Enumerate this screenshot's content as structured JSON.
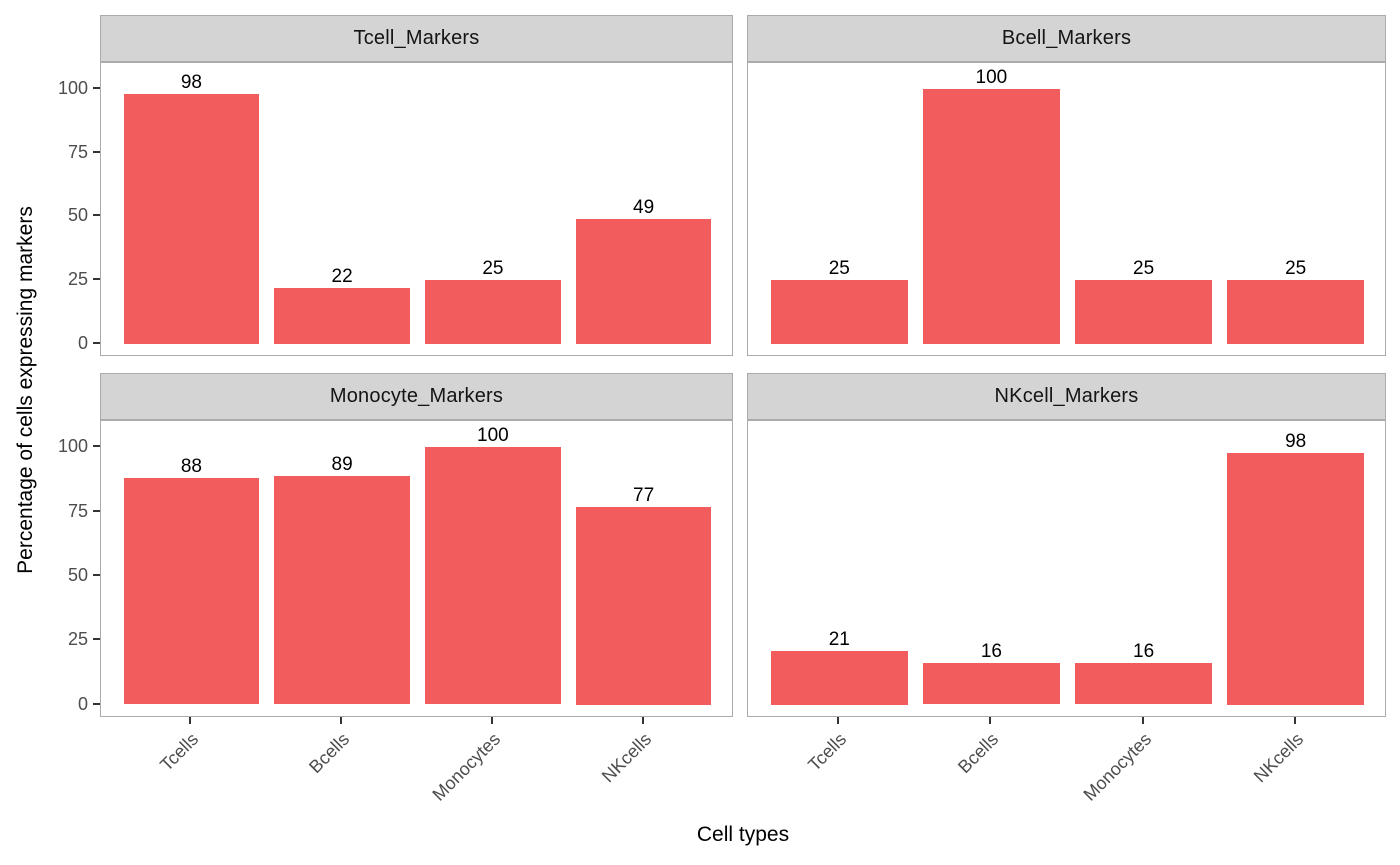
{
  "figure": {
    "xlabel": "Cell types",
    "ylabel": "Percentage of cells expressing markers"
  },
  "colors": {
    "bar_fill": "#f35c5c",
    "strip_background": "#d4d4d4",
    "panel_border": "#ababab",
    "tick_mark": "#333333",
    "tick_label": "#4d4d4d",
    "strip_text": "#141414",
    "axis_title": "#000000",
    "value_label": "#000000",
    "background": "#ffffff"
  },
  "chart_data": {
    "type": "bar",
    "title": "",
    "xlabel": "Cell types",
    "ylabel": "Percentage of cells expressing markers",
    "categories": [
      "Tcells",
      "Bcells",
      "Monocytes",
      "NKcells"
    ],
    "facets": [
      {
        "title": "Tcell_Markers",
        "values": [
          98,
          22,
          25,
          49
        ]
      },
      {
        "title": "Bcell_Markers",
        "values": [
          25,
          100,
          25,
          25
        ]
      },
      {
        "title": "Monocyte_Markers",
        "values": [
          88,
          89,
          100,
          77
        ]
      },
      {
        "title": "NKcell_Markers",
        "values": [
          21,
          16,
          16,
          98
        ]
      }
    ],
    "value_labels_shown": true,
    "yticks": [
      0,
      25,
      50,
      75,
      100
    ],
    "ylim": [
      0,
      100
    ],
    "grid": false,
    "legend": "none",
    "x_tick_label_angle": 45
  }
}
